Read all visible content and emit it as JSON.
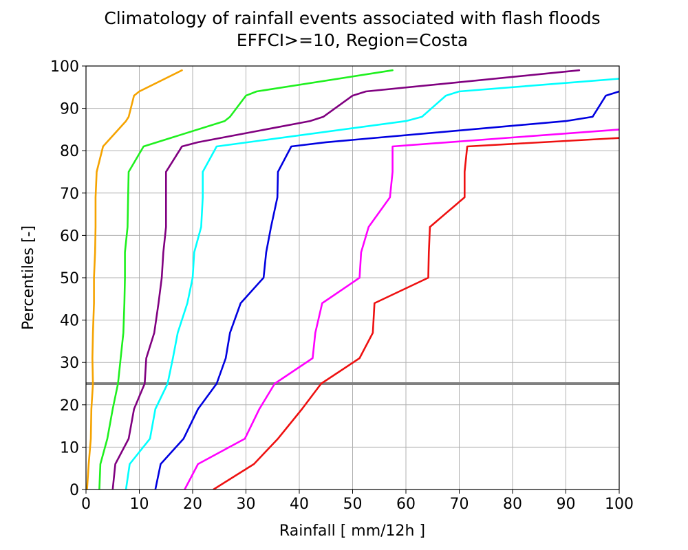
{
  "chart_data": {
    "type": "line",
    "title_line1": "Climatology of rainfall events associated with flash floods",
    "title_line2": "EFFCI>=10, Region=Costa",
    "xlabel": "Rainfall [ mm/12h ]",
    "ylabel": "Percentiles [-]",
    "xlim": [
      0,
      100
    ],
    "ylim": [
      0,
      100
    ],
    "xticks": [
      0,
      10,
      20,
      30,
      40,
      50,
      60,
      70,
      80,
      90,
      100
    ],
    "yticks": [
      0,
      10,
      20,
      30,
      40,
      50,
      60,
      70,
      80,
      90,
      100
    ],
    "grid": true,
    "reference_line": {
      "y": 25,
      "color": "#808080"
    },
    "series": [
      {
        "color": "#f5a300",
        "points": [
          [
            0.2,
            0
          ],
          [
            0.5,
            6
          ],
          [
            0.9,
            12
          ],
          [
            1.0,
            19
          ],
          [
            1.3,
            25
          ],
          [
            1.2,
            31
          ],
          [
            1.3,
            37
          ],
          [
            1.5,
            44
          ],
          [
            1.5,
            50
          ],
          [
            1.7,
            56
          ],
          [
            1.8,
            62
          ],
          [
            1.8,
            69
          ],
          [
            2.0,
            75
          ],
          [
            3.2,
            81
          ],
          [
            7.5,
            87
          ],
          [
            8.0,
            88
          ],
          [
            9.0,
            93
          ],
          [
            10.0,
            94
          ],
          [
            18.0,
            99
          ]
        ]
      },
      {
        "color": "#1ef01e",
        "points": [
          [
            2.5,
            0
          ],
          [
            2.7,
            6
          ],
          [
            4.0,
            12
          ],
          [
            5.0,
            19
          ],
          [
            6.0,
            25
          ],
          [
            6.5,
            31
          ],
          [
            7.0,
            37
          ],
          [
            7.2,
            44
          ],
          [
            7.3,
            50
          ],
          [
            7.3,
            56
          ],
          [
            7.8,
            62
          ],
          [
            7.9,
            69
          ],
          [
            8.0,
            75
          ],
          [
            10.8,
            81
          ],
          [
            26.0,
            87
          ],
          [
            27.0,
            88
          ],
          [
            30.0,
            93
          ],
          [
            32.0,
            94
          ],
          [
            57.5,
            99
          ]
        ]
      },
      {
        "color": "#800080",
        "points": [
          [
            5.0,
            0
          ],
          [
            5.5,
            6
          ],
          [
            8.0,
            12
          ],
          [
            9.0,
            19
          ],
          [
            11.0,
            25
          ],
          [
            11.3,
            31
          ],
          [
            12.8,
            37
          ],
          [
            13.6,
            44
          ],
          [
            14.2,
            50
          ],
          [
            14.5,
            56
          ],
          [
            15.0,
            62
          ],
          [
            15.0,
            69
          ],
          [
            15.0,
            75
          ],
          [
            18.0,
            81
          ],
          [
            21.0,
            82
          ],
          [
            42.0,
            87
          ],
          [
            44.5,
            88
          ],
          [
            50.0,
            93
          ],
          [
            52.5,
            94
          ],
          [
            92.5,
            99
          ]
        ]
      },
      {
        "color": "#00ffff",
        "points": [
          [
            7.5,
            0
          ],
          [
            8.2,
            6
          ],
          [
            12.0,
            12
          ],
          [
            13.0,
            19
          ],
          [
            15.3,
            25
          ],
          [
            16.3,
            31
          ],
          [
            17.2,
            37
          ],
          [
            19.0,
            44
          ],
          [
            20.0,
            50
          ],
          [
            20.3,
            56
          ],
          [
            21.6,
            62
          ],
          [
            21.9,
            69
          ],
          [
            21.9,
            75
          ],
          [
            24.5,
            81
          ],
          [
            60.0,
            87
          ],
          [
            63.0,
            88
          ],
          [
            67.5,
            93
          ],
          [
            70.0,
            94
          ],
          [
            100.0,
            97
          ]
        ]
      },
      {
        "color": "#0000e0",
        "points": [
          [
            13.0,
            0
          ],
          [
            14.0,
            6
          ],
          [
            18.3,
            12
          ],
          [
            21.0,
            19
          ],
          [
            24.5,
            25
          ],
          [
            26.2,
            31
          ],
          [
            27.0,
            37
          ],
          [
            29.0,
            44
          ],
          [
            33.3,
            50
          ],
          [
            33.8,
            56
          ],
          [
            34.7,
            62
          ],
          [
            35.9,
            69
          ],
          [
            36.0,
            75
          ],
          [
            38.5,
            81
          ],
          [
            45.0,
            82
          ],
          [
            90.0,
            87
          ],
          [
            95.0,
            88
          ],
          [
            97.5,
            93
          ],
          [
            100.0,
            94
          ]
        ]
      },
      {
        "color": "#ff00ff",
        "points": [
          [
            18.5,
            0
          ],
          [
            21.0,
            6
          ],
          [
            29.8,
            12
          ],
          [
            32.5,
            19
          ],
          [
            35.4,
            25
          ],
          [
            42.5,
            31
          ],
          [
            43.0,
            37
          ],
          [
            44.3,
            44
          ],
          [
            51.3,
            50
          ],
          [
            51.6,
            56
          ],
          [
            53.0,
            62
          ],
          [
            57.0,
            69
          ],
          [
            57.5,
            75
          ],
          [
            57.5,
            81
          ],
          [
            100.0,
            85
          ]
        ]
      },
      {
        "color": "#ee1010",
        "points": [
          [
            23.9,
            0
          ],
          [
            31.5,
            6
          ],
          [
            36.0,
            12
          ],
          [
            40.5,
            19
          ],
          [
            44.1,
            25
          ],
          [
            51.3,
            31
          ],
          [
            53.8,
            37
          ],
          [
            54.1,
            44
          ],
          [
            64.2,
            50
          ],
          [
            64.3,
            56
          ],
          [
            64.5,
            62
          ],
          [
            71.0,
            69
          ],
          [
            71.0,
            75
          ],
          [
            71.5,
            81
          ],
          [
            100.0,
            83
          ]
        ]
      }
    ]
  }
}
